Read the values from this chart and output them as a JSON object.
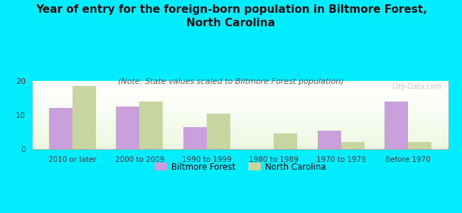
{
  "title": "Year of entry for the foreign-born population in Biltmore Forest,\nNorth Carolina",
  "subtitle": "(Note: State values scaled to Biltmore Forest population)",
  "categories": [
    "2010 or later",
    "2000 to 2009",
    "1990 to 1999",
    "1980 to 1989",
    "1970 to 1979",
    "Before 1970"
  ],
  "biltmore_values": [
    12,
    12.5,
    6.5,
    0,
    5.5,
    14
  ],
  "nc_values": [
    18.5,
    14,
    10.5,
    4.5,
    2,
    2
  ],
  "biltmore_color": "#c9a0dc",
  "nc_color": "#c8d5a0",
  "background_color": "#00eeff",
  "ylim": [
    0,
    20
  ],
  "yticks": [
    0,
    10,
    20
  ],
  "bar_width": 0.35,
  "legend_labels": [
    "Biltmore Forest",
    "North Carolina"
  ],
  "watermark": "City-Data.com",
  "title_fontsize": 11,
  "subtitle_fontsize": 8
}
